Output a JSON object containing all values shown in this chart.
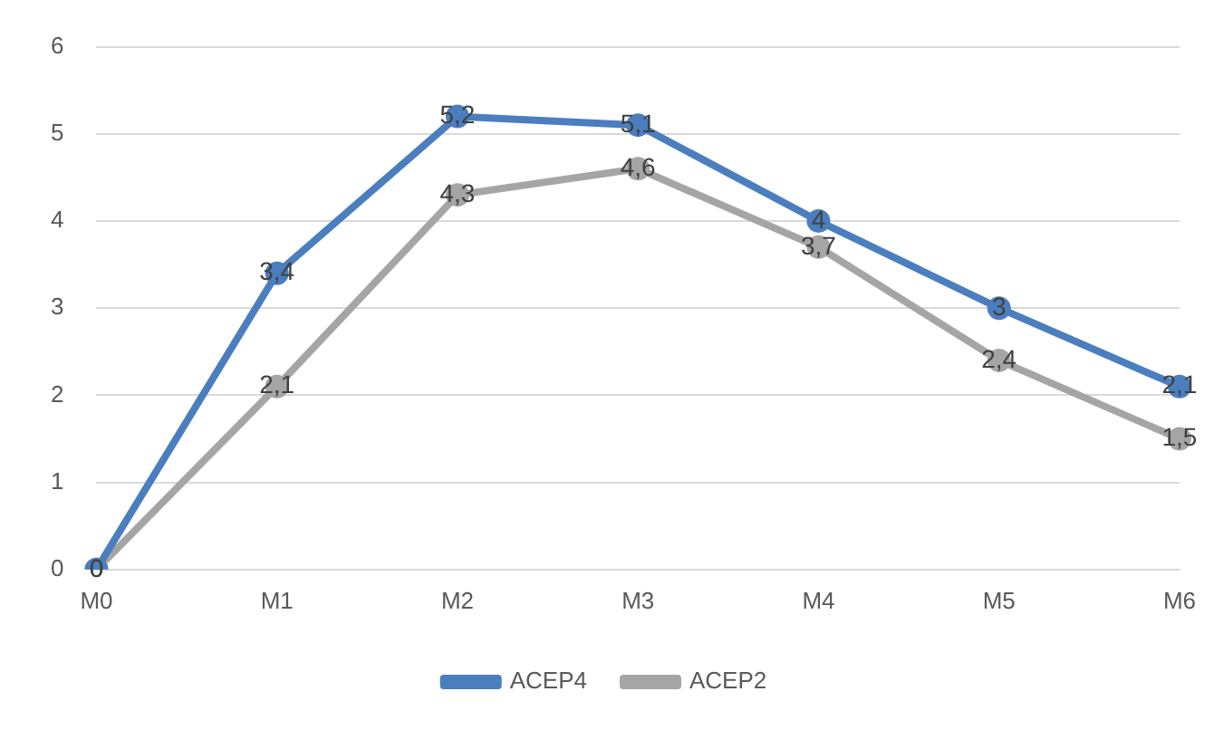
{
  "chart_data": {
    "type": "line",
    "categories": [
      "M0",
      "M1",
      "M2",
      "M3",
      "M4",
      "M5",
      "M6"
    ],
    "series": [
      {
        "name": "ACEP4",
        "color": "#4a7ebf",
        "values": [
          0,
          3.4,
          5.2,
          5.1,
          4,
          3,
          2.1
        ],
        "value_labels": [
          "0",
          "3,4",
          "5,2",
          "5,1",
          "4",
          "3",
          "2,1"
        ]
      },
      {
        "name": "ACEP2",
        "color": "#a5a5a5",
        "values": [
          0,
          2.1,
          4.3,
          4.6,
          3.7,
          2.4,
          1.5
        ],
        "value_labels": [
          "0",
          "2,1",
          "4,3",
          "4,6",
          "3,7",
          "2,4",
          "1,5"
        ]
      }
    ],
    "ylim": [
      0,
      6
    ],
    "yticks": [
      0,
      1,
      2,
      3,
      4,
      5,
      6
    ],
    "grid": "y",
    "legend": "bottom",
    "marker": "circle",
    "line_style": "solid"
  }
}
